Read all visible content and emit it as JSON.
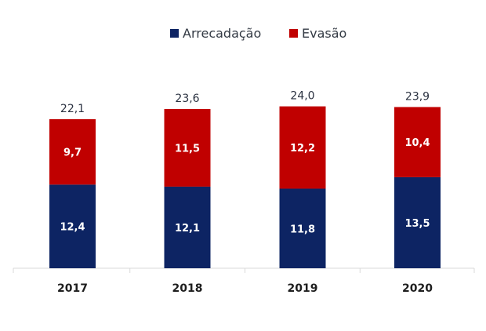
{
  "chart_data": {
    "type": "bar",
    "stacked": true,
    "title": "",
    "xlabel": "",
    "ylabel": "",
    "categories": [
      "2017",
      "2018",
      "2019",
      "2020"
    ],
    "series": [
      {
        "name": "Arrecadação",
        "color": "#0d2463",
        "values": [
          12.4,
          12.1,
          11.8,
          13.5
        ],
        "labels": [
          "12,4",
          "12,1",
          "11,8",
          "13,5"
        ]
      },
      {
        "name": "Evasão",
        "color": "#c00000",
        "values": [
          9.7,
          11.5,
          12.2,
          10.4
        ],
        "labels": [
          "9,7",
          "11,5",
          "12,2",
          "10,4"
        ]
      }
    ],
    "totals": [
      22.1,
      23.6,
      24.0,
      23.9
    ],
    "total_labels": [
      "22,1",
      "23,6",
      "24,0",
      "23,9"
    ],
    "ylim": [
      0,
      25
    ],
    "grid": false,
    "legend": "top-center",
    "axis_color": "#d9d9d9"
  }
}
